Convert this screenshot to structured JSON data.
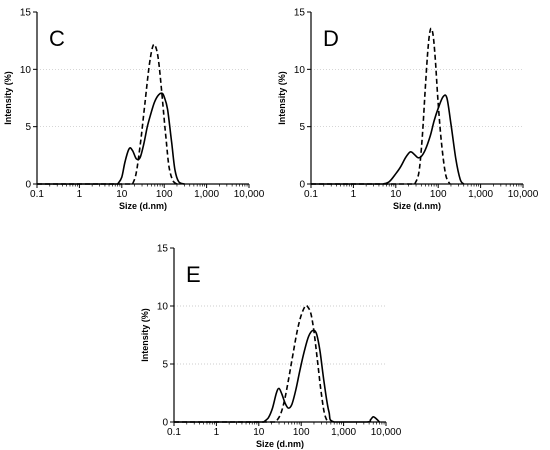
{
  "chart_data": [
    {
      "type": "line",
      "panel_label": "C",
      "xlabel": "Size (d.nm)",
      "ylabel": "Intensity (%)",
      "xscale": "log",
      "xlim": [
        0.1,
        10000
      ],
      "ylim": [
        0,
        15
      ],
      "x_ticks": [
        "0.1",
        "1",
        "10",
        "100",
        "1,000",
        "10,000"
      ],
      "y_ticks": [
        "0",
        "5",
        "10",
        "15"
      ],
      "grid": "horizontal dotted",
      "series": [
        {
          "style": "solid",
          "x": [
            8,
            10,
            12,
            15,
            18,
            22,
            27,
            33,
            40,
            50,
            60,
            75,
            90,
            100,
            120,
            150,
            180,
            220,
            300
          ],
          "y": [
            0,
            0.6,
            2.0,
            3.1,
            2.9,
            2.2,
            2.3,
            3.5,
            5.0,
            6.3,
            7.2,
            7.8,
            7.9,
            7.6,
            6.5,
            3.6,
            1.2,
            0.2,
            0
          ]
        },
        {
          "style": "dashed",
          "x": [
            18,
            22,
            28,
            35,
            45,
            55,
            65,
            75,
            90,
            110,
            130,
            160,
            200
          ],
          "y": [
            0,
            1.0,
            3.8,
            7.0,
            10.5,
            12.1,
            11.8,
            10.5,
            7.5,
            4.0,
            1.5,
            0.3,
            0
          ]
        }
      ]
    },
    {
      "type": "line",
      "panel_label": "D",
      "xlabel": "Size (d.nm)",
      "ylabel": "Intensity (%)",
      "xscale": "log",
      "xlim": [
        0.1,
        10000
      ],
      "ylim": [
        0,
        15
      ],
      "x_ticks": [
        "0.1",
        "1",
        "10",
        "100",
        "1,000",
        "10,000"
      ],
      "y_ticks": [
        "0",
        "5",
        "10",
        "15"
      ],
      "grid": "horizontal dotted",
      "series": [
        {
          "style": "solid",
          "x": [
            5,
            7,
            10,
            13,
            17,
            22,
            27,
            33,
            40,
            50,
            65,
            80,
            100,
            130,
            160,
            200,
            260,
            330,
            400
          ],
          "y": [
            0,
            0.2,
            0.9,
            1.5,
            2.3,
            2.8,
            2.6,
            2.3,
            2.4,
            3.0,
            4.2,
            5.5,
            6.6,
            7.6,
            7.5,
            5.2,
            2.2,
            0.4,
            0
          ]
        },
        {
          "style": "dashed",
          "x": [
            28,
            35,
            42,
            50,
            58,
            66,
            75,
            85,
            100,
            120,
            150,
            190
          ],
          "y": [
            0,
            1.0,
            4.0,
            8.5,
            12.0,
            13.5,
            13.1,
            11.0,
            7.0,
            3.5,
            0.8,
            0
          ]
        }
      ]
    },
    {
      "type": "line",
      "panel_label": "E",
      "xlabel": "Size (d.nm)",
      "ylabel": "Intensity (%)",
      "xscale": "log",
      "xlim": [
        0.1,
        10000
      ],
      "ylim": [
        0,
        15
      ],
      "x_ticks": [
        "0.1",
        "1",
        "10",
        "100",
        "1,000",
        "10,000"
      ],
      "y_ticks": [
        "0",
        "5",
        "10",
        "15"
      ],
      "grid": "horizontal dotted",
      "series": [
        {
          "style": "solid",
          "x": [
            13,
            17,
            21,
            26,
            30,
            35,
            42,
            50,
            60,
            75,
            95,
            120,
            150,
            190,
            230,
            280,
            350,
            450,
            600,
            3500,
            4300,
            5000,
            5800,
            7000
          ],
          "y": [
            0,
            0.4,
            1.2,
            2.5,
            2.9,
            2.4,
            1.6,
            1.2,
            1.5,
            2.8,
            4.6,
            6.2,
            7.4,
            7.9,
            7.6,
            6.0,
            3.3,
            0.9,
            0,
            0,
            0.2,
            0.45,
            0.3,
            0
          ]
        },
        {
          "style": "dashed",
          "x": [
            25,
            32,
            40,
            50,
            65,
            80,
            100,
            125,
            145,
            170,
            200,
            240,
            290,
            350,
            420
          ],
          "y": [
            0,
            0.6,
            1.8,
            3.6,
            6.0,
            7.8,
            9.2,
            10.0,
            9.9,
            9.3,
            7.8,
            5.4,
            2.8,
            0.8,
            0
          ]
        }
      ]
    }
  ]
}
